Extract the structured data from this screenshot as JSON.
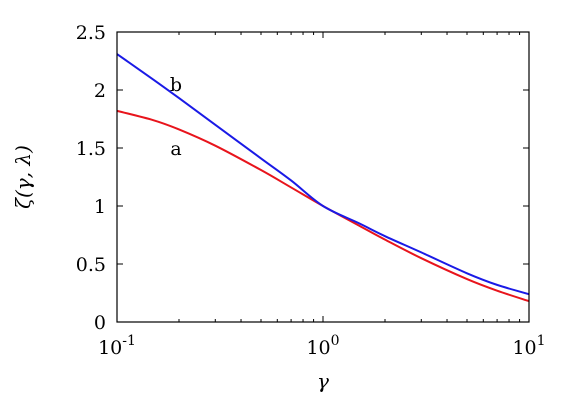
{
  "chart_data": {
    "type": "line",
    "xlabel": "γ",
    "ylabel": "ζ(γ, λ)",
    "xscale": "log",
    "xlim": [
      0.1,
      10
    ],
    "ylim": [
      0,
      2.5
    ],
    "x_ticks": [
      {
        "value": 0.1,
        "base": "10",
        "exp": "-1"
      },
      {
        "value": 1,
        "base": "10",
        "exp": "0"
      },
      {
        "value": 10,
        "base": "10",
        "exp": "1"
      }
    ],
    "y_ticks": [
      {
        "value": 0,
        "label": "0"
      },
      {
        "value": 0.5,
        "label": "0.5"
      },
      {
        "value": 1,
        "label": "1"
      },
      {
        "value": 1.5,
        "label": "1.5"
      },
      {
        "value": 2,
        "label": "2"
      },
      {
        "value": 2.5,
        "label": "2.5"
      }
    ],
    "grid": false,
    "legend": "none",
    "series": [
      {
        "name": "a",
        "color": "#e8141c",
        "x": [
          0.1,
          0.15,
          0.2,
          0.3,
          0.5,
          0.7,
          1,
          1.5,
          2,
          3,
          5,
          7,
          10
        ],
        "y": [
          1.82,
          1.74,
          1.66,
          1.52,
          1.31,
          1.16,
          1.0,
          0.83,
          0.71,
          0.55,
          0.37,
          0.27,
          0.18
        ]
      },
      {
        "name": "b",
        "color": "#1a1ae6",
        "x": [
          0.1,
          0.15,
          0.2,
          0.3,
          0.5,
          0.7,
          1,
          1.5,
          2,
          3,
          5,
          7,
          10
        ],
        "y": [
          2.31,
          2.09,
          1.93,
          1.7,
          1.41,
          1.22,
          1.0,
          0.85,
          0.74,
          0.6,
          0.42,
          0.32,
          0.24
        ]
      }
    ],
    "annotations": [
      {
        "text": "b",
        "x": 0.2,
        "y": 2.05
      },
      {
        "text": "a",
        "x": 0.2,
        "y": 1.5
      }
    ]
  }
}
